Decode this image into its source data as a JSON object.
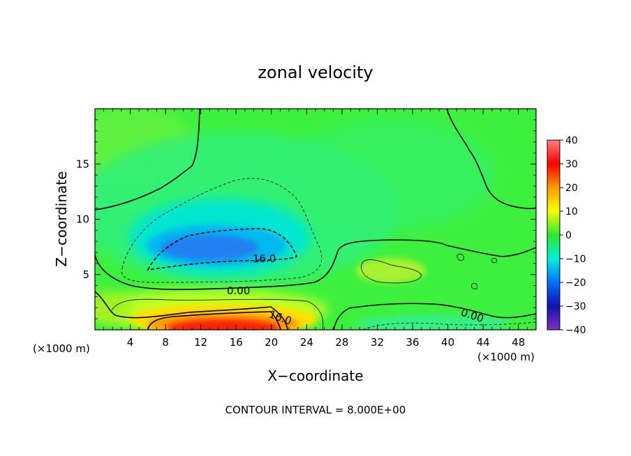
{
  "chart_data": {
    "type": "heatmap",
    "title": "zonal velocity",
    "xlabel": "X−coordinate",
    "ylabel": "Z−coordinate",
    "x_unit_left": "(×1000 m)",
    "x_unit_right": "(×1000 m)",
    "xlim": [
      0,
      50
    ],
    "ylim": [
      0,
      20
    ],
    "x_ticks": [
      4,
      8,
      12,
      16,
      20,
      24,
      28,
      32,
      36,
      40,
      44,
      48
    ],
    "y_ticks": [
      5,
      10,
      15
    ],
    "colorbar": {
      "ticks": [
        40,
        30,
        20,
        10,
        0,
        -10,
        -20,
        -30,
        -40
      ],
      "tick_labels": [
        "40",
        "30",
        "20",
        "10",
        "0",
        "−10",
        "−20",
        "−30",
        "−40"
      ],
      "range": [
        -40,
        40
      ]
    },
    "contour_labels": [
      "16.0",
      "0.00",
      "16.0",
      "0.00"
    ],
    "contour_interval_text": "CONTOUR INTERVAL = 8.000E+00",
    "features": [
      {
        "kind": "jet",
        "sign": "negative",
        "x_center": 14,
        "z_center": 7.5,
        "peak": -22
      },
      {
        "kind": "jet",
        "sign": "positive",
        "x_center": 15,
        "z_center": 0.5,
        "peak": 30
      },
      {
        "kind": "jet",
        "sign": "positive",
        "x_center": 33,
        "z_center": 5.3,
        "peak": 6
      }
    ]
  }
}
